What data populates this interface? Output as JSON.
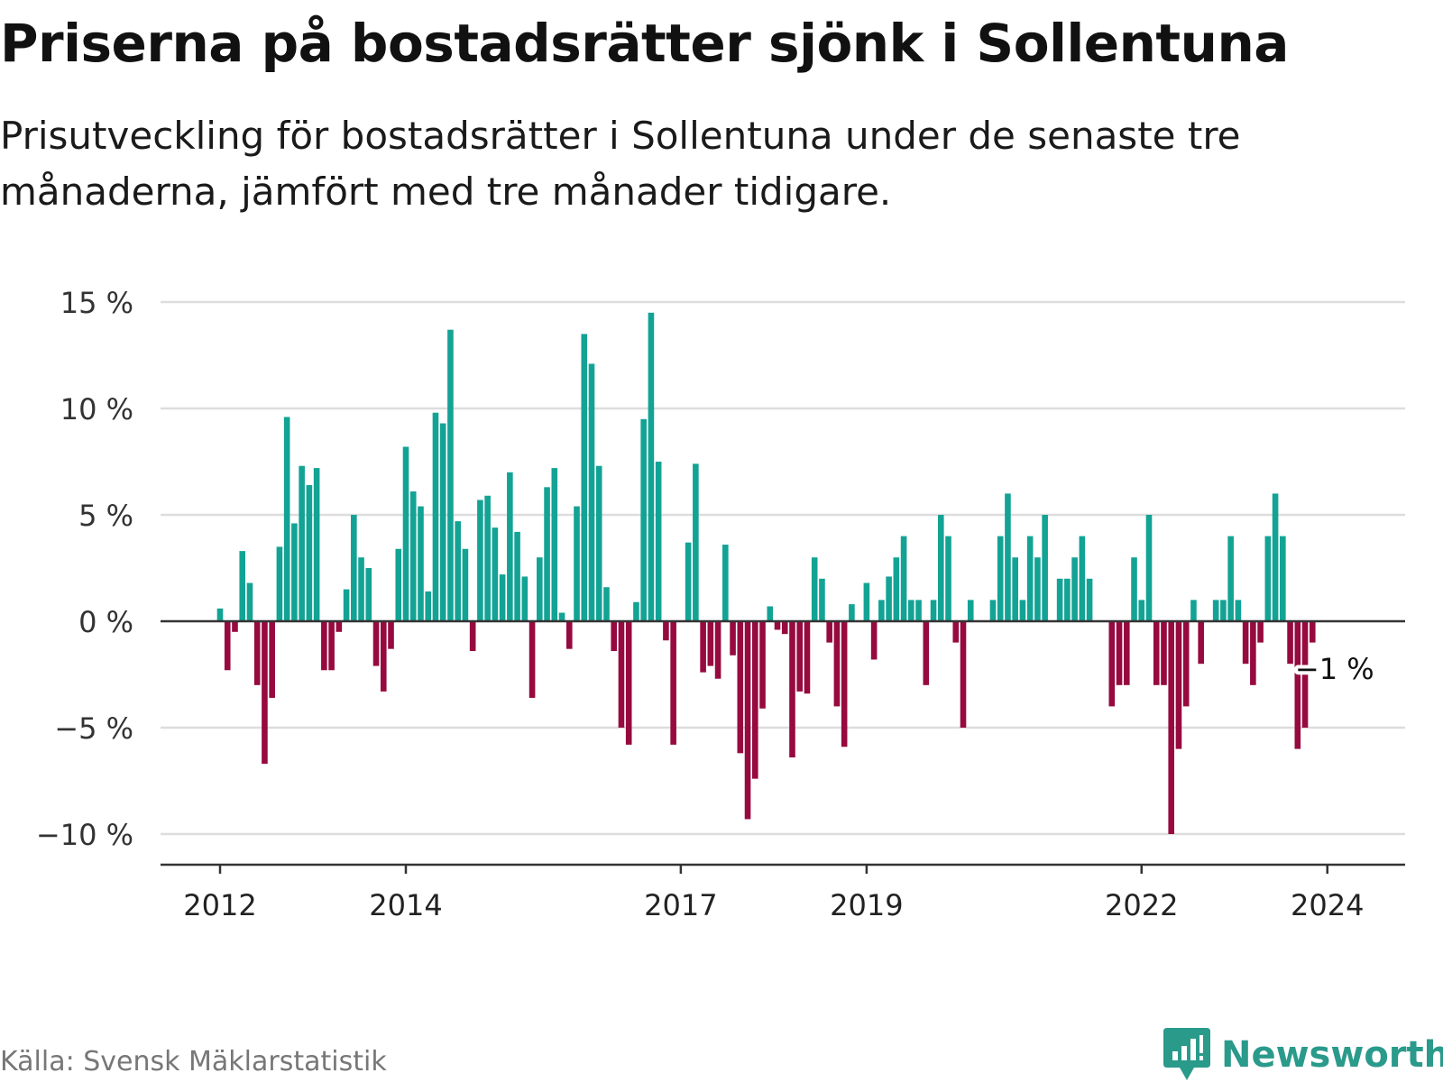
{
  "title": "Priserna på bostadsrätter sjönk i Sollentuna",
  "subtitle": "Prisutveckling för bostadsrätter i Sollentuna under de senaste tre månaderna, jämfört med tre månader tidigare.",
  "source": "Källa: Svensk Mäklarstatistik",
  "brand": "Newsworthy",
  "colors": {
    "positive": "#13a395",
    "negative": "#960a3f",
    "brand": "#2a9a8b",
    "grid": "#dddddd",
    "axis": "#333333"
  },
  "chart_data": {
    "type": "bar",
    "title": "Prisutveckling för bostadsrätter i Sollentuna",
    "xlabel": "",
    "ylabel": "",
    "ylim": [
      -10.6,
      15.3
    ],
    "y_ticks": [
      15,
      10,
      5,
      0,
      -5,
      -10
    ],
    "y_tick_labels": [
      "15 %",
      "10 %",
      "5 %",
      "0 %",
      "−5 %",
      "−10 %"
    ],
    "x_ticks": [
      {
        "label": "2012",
        "index": 0
      },
      {
        "label": "2014",
        "index": 25
      },
      {
        "label": "2017",
        "index": 62
      },
      {
        "label": "2019",
        "index": 87
      },
      {
        "label": "2022",
        "index": 124
      },
      {
        "label": "2024",
        "index": 149
      }
    ],
    "series": [
      {
        "name": "Prisutveckling (%)",
        "values": [
          0.6,
          -2.3,
          -0.5,
          3.3,
          1.8,
          -3.0,
          -6.7,
          -3.6,
          3.5,
          9.6,
          4.6,
          7.3,
          6.4,
          7.2,
          -2.3,
          -2.3,
          -0.5,
          1.5,
          5.0,
          3.0,
          2.5,
          -2.1,
          -3.3,
          -1.3,
          3.4,
          8.2,
          6.1,
          5.4,
          1.4,
          9.8,
          9.3,
          13.7,
          4.7,
          3.4,
          -1.4,
          5.7,
          5.9,
          4.4,
          2.2,
          7.0,
          4.2,
          2.1,
          -3.6,
          3.0,
          6.3,
          7.2,
          0.4,
          -1.3,
          5.4,
          13.5,
          12.1,
          7.3,
          1.6,
          -1.4,
          -5.0,
          -5.8,
          0.9,
          9.5,
          14.5,
          7.5,
          -0.9,
          -5.8,
          0.0,
          3.7,
          7.4,
          -2.4,
          -2.1,
          -2.7,
          3.6,
          -1.6,
          -6.2,
          -9.3,
          -7.4,
          -4.1,
          0.7,
          -0.4,
          -0.6,
          -6.4,
          -3.3,
          -3.4,
          3.0,
          2.0,
          -1.0,
          -4.0,
          -5.9,
          0.8,
          0.0,
          1.8,
          -1.8,
          1.0,
          2.1,
          3.0,
          4.0,
          1.0,
          1.0,
          -3.0,
          1.0,
          5.0,
          4.0,
          -1.0,
          -5.0,
          1.0,
          0.0,
          0.0,
          1.0,
          4.0,
          6.0,
          3.0,
          1.0,
          4.0,
          3.0,
          5.0,
          0.0,
          2.0,
          2.0,
          3.0,
          4.0,
          2.0,
          0.0,
          0.0,
          -4.0,
          -3.0,
          -3.0,
          3.0,
          1.0,
          5.0,
          -3.0,
          -3.0,
          -10.0,
          -6.0,
          -4.0,
          1.0,
          -2.0,
          0.0,
          1.0,
          1.0,
          4.0,
          1.0,
          -2.0,
          -3.0,
          -1.0,
          4.0,
          6.0,
          4.0,
          -2.0,
          -6.0,
          -5.0,
          -1.0
        ]
      }
    ],
    "annotation": {
      "label": "−1 %",
      "index": 149
    }
  }
}
